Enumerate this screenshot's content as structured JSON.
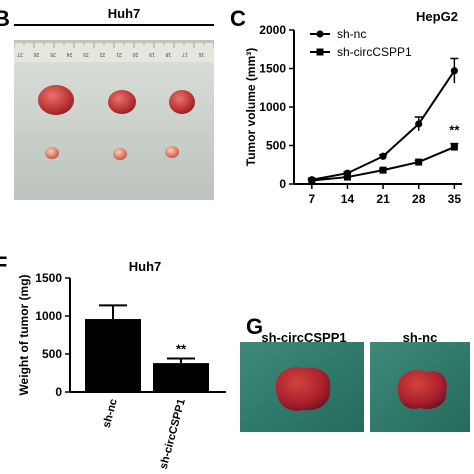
{
  "panels": {
    "b": {
      "letter": "B",
      "title": "Huh7",
      "ruler_numbers": [
        "27",
        "26",
        "25",
        "24",
        "23",
        "22",
        "21",
        "20",
        "19",
        "18",
        "17",
        "16"
      ]
    },
    "c": {
      "letter": "C"
    },
    "f": {
      "letter": "F"
    },
    "g": {
      "letter": "G",
      "label_left": "sh-circCSPP1",
      "label_right": "sh-nc"
    }
  },
  "colors": {
    "series": "#000000",
    "bar": "#000000",
    "tray": "#cfd4cf",
    "tissue_bg": "#2f7a6c",
    "tumor": "#b5243a"
  },
  "chart_data": [
    {
      "id": "tumor-volume",
      "type": "line",
      "title": "HepG2",
      "xlabel": "",
      "ylabel": "Tumor volume (mm³)",
      "x": [
        7,
        14,
        21,
        28,
        35
      ],
      "xticks": [
        "7",
        "14",
        "21",
        "28",
        "35"
      ],
      "ylim": [
        0,
        2000
      ],
      "yticks": [
        "0",
        "500",
        "1000",
        "1500",
        "2000"
      ],
      "legend_position": "top-left",
      "series": [
        {
          "name": "sh-nc",
          "marker": "circle",
          "values": [
            55,
            140,
            360,
            780,
            1470
          ],
          "errors": [
            10,
            15,
            20,
            90,
            160
          ]
        },
        {
          "name": "sh-circCSPP1",
          "marker": "square",
          "values": [
            45,
            90,
            180,
            285,
            480
          ],
          "errors": [
            8,
            10,
            15,
            20,
            45
          ]
        }
      ],
      "annotations": [
        {
          "text": "**",
          "x": 35,
          "y": 640
        }
      ]
    },
    {
      "id": "tumor-weight",
      "type": "bar",
      "title": "Huh7",
      "xlabel": "",
      "ylabel": "Weight of tumor (mg)",
      "categories": [
        "sh-nc",
        "sh-circCSPP1"
      ],
      "values": [
        960,
        380
      ],
      "errors": [
        180,
        60
      ],
      "ylim": [
        0,
        1500
      ],
      "yticks": [
        "0",
        "500",
        "1000",
        "1500"
      ],
      "annotations": [
        {
          "text": "**",
          "category": "sh-circCSPP1"
        }
      ]
    }
  ]
}
